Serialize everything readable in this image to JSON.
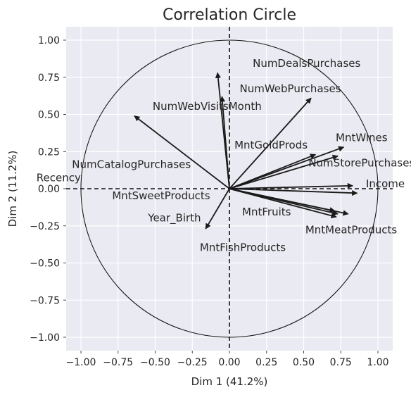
{
  "chart_data": {
    "type": "scatter",
    "title": "Correlation Circle",
    "xlabel": "Dim 1 (41.2%)",
    "ylabel": "Dim 2 (11.2%)",
    "xlim": [
      -1.1,
      1.1
    ],
    "ylim": [
      -1.1,
      1.1
    ],
    "xticks": [
      "−1.00",
      "−0.75",
      "−0.50",
      "−0.25",
      "0.00",
      "0.25",
      "0.50",
      "0.75",
      "1.00"
    ],
    "yticks": [
      "−1.00",
      "−0.75",
      "−0.50",
      "−0.25",
      "0.00",
      "0.25",
      "0.50",
      "0.75",
      "1.00"
    ],
    "grid": true,
    "unit_circle": true,
    "variables": [
      {
        "name": "NumDealsPurchases",
        "x": -0.08,
        "y": 0.78
      },
      {
        "name": "NumWebPurchases",
        "x": -0.05,
        "y": 0.62
      },
      {
        "name": "NumWebVisitsMonth",
        "x": -0.64,
        "y": 0.49
      },
      {
        "name": "MntGoldProds",
        "x": 0.55,
        "y": 0.61
      },
      {
        "name": "MntWines",
        "x": 0.77,
        "y": 0.28
      },
      {
        "name": "NumStorePurchases",
        "x": 0.73,
        "y": 0.22
      },
      {
        "name": "NumCatalogPurchases",
        "x": 0.58,
        "y": 0.23
      },
      {
        "name": "Income",
        "x": 0.83,
        "y": 0.02
      },
      {
        "name": "Recency",
        "x": 0.86,
        "y": -0.03
      },
      {
        "name": "MntMeatProducts",
        "x": 0.8,
        "y": -0.17
      },
      {
        "name": "MntFruits",
        "x": 0.73,
        "y": -0.17
      },
      {
        "name": "MntFishProducts",
        "x": 0.72,
        "y": -0.19
      },
      {
        "name": "MntSweetProducts",
        "x": 0.71,
        "y": -0.15
      },
      {
        "name": "Year_Birth",
        "x": -0.16,
        "y": -0.27
      }
    ],
    "labels": [
      {
        "text": "NumDealsPurchases",
        "x": 0.52,
        "y": 0.82
      },
      {
        "text": "NumWebPurchases",
        "x": 0.41,
        "y": 0.65
      },
      {
        "text": "NumWebVisitsMonth",
        "x": -0.15,
        "y": 0.53
      },
      {
        "text": "MntGoldProds",
        "x": 0.28,
        "y": 0.27
      },
      {
        "text": "MntWines",
        "x": 0.89,
        "y": 0.32
      },
      {
        "text": "NumStorePurchases",
        "x": 0.89,
        "y": 0.15
      },
      {
        "text": "NumCatalogPurchases",
        "x": -0.66,
        "y": 0.14
      },
      {
        "text": "Income",
        "x": 1.05,
        "y": 0.01
      },
      {
        "text": "Recency",
        "x": -1.15,
        "y": 0.05
      },
      {
        "text": "MntMeatProducts",
        "x": 0.82,
        "y": -0.3
      },
      {
        "text": "MntFruits",
        "x": 0.25,
        "y": -0.18
      },
      {
        "text": "MntFishProducts",
        "x": 0.09,
        "y": -0.42
      },
      {
        "text": "MntSweetProducts",
        "x": -0.46,
        "y": -0.07
      },
      {
        "text": "Year_Birth",
        "x": -0.37,
        "y": -0.22
      }
    ],
    "colors": {
      "background": "#eaeaf2",
      "grid": "#ffffff",
      "arrow": "#1a1a1a",
      "text": "#262626"
    }
  }
}
